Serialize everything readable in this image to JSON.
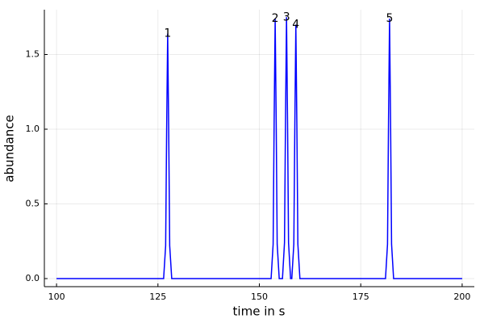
{
  "chart_data": {
    "type": "line",
    "xlabel": "time in s",
    "ylabel": "abundance",
    "x": [
      100,
      126.4,
      126.9,
      127.15,
      127.4,
      127.65,
      127.9,
      128.4,
      152.9,
      153.4,
      153.65,
      153.9,
      154.15,
      154.4,
      154.9,
      155.7,
      156.2,
      156.45,
      156.7,
      156.95,
      157.2,
      157.7,
      158.0,
      158.5,
      158.75,
      159.0,
      159.25,
      159.5,
      160.0,
      181.1,
      181.6,
      181.85,
      182.1,
      182.35,
      182.6,
      183.1,
      200
    ],
    "series": [
      {
        "color": "#0000ff",
        "values": [
          0,
          0,
          0.22,
          1.0,
          1.64,
          1.0,
          0.22,
          0,
          0,
          0.23,
          1.06,
          1.74,
          1.06,
          0.23,
          0,
          0,
          0.24,
          1.06,
          1.75,
          1.06,
          0.24,
          0,
          0,
          0.23,
          1.03,
          1.7,
          1.03,
          0.23,
          0,
          0,
          0.23,
          1.06,
          1.74,
          1.06,
          0.23,
          0,
          0
        ]
      }
    ],
    "annotations": [
      {
        "text": "1",
        "x": 127.4,
        "y": 1.64
      },
      {
        "text": "2",
        "x": 153.9,
        "y": 1.74
      },
      {
        "text": "3",
        "x": 156.7,
        "y": 1.75
      },
      {
        "text": "4",
        "x": 159.0,
        "y": 1.7
      },
      {
        "text": "5",
        "x": 182.1,
        "y": 1.74
      }
    ],
    "xlim": [
      97,
      203
    ],
    "ylim": [
      -0.054,
      1.8
    ],
    "xticks": [
      100,
      125,
      150,
      175,
      200
    ],
    "yticks": [
      {
        "value": 0,
        "label": "0.0"
      },
      {
        "value": 0.5,
        "label": "0.5"
      },
      {
        "value": 1,
        "label": "1.0"
      },
      {
        "value": 1.5,
        "label": "1.5"
      }
    ],
    "grid": true
  }
}
